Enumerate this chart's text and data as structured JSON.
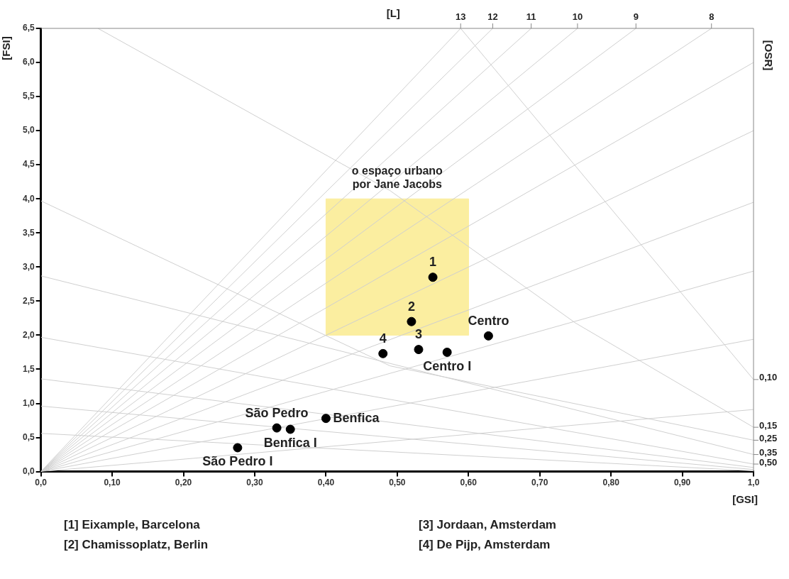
{
  "chart_data": {
    "type": "scatter",
    "xlabel": "[GSI]",
    "ylabel": "[FSI]",
    "x2label": "[L]",
    "y2label": "[OSR]",
    "xlim": [
      0,
      1
    ],
    "ylim": [
      0,
      6.5
    ],
    "xticks": [
      {
        "value": 0,
        "label": "0,0"
      },
      {
        "value": 0.1,
        "label": "0,10"
      },
      {
        "value": 0.2,
        "label": "0,20"
      },
      {
        "value": 0.3,
        "label": "0,30"
      },
      {
        "value": 0.4,
        "label": "0,40"
      },
      {
        "value": 0.5,
        "label": "0,50"
      },
      {
        "value": 0.6,
        "label": "0,60"
      },
      {
        "value": 0.7,
        "label": "0,70"
      },
      {
        "value": 0.8,
        "label": "0,80"
      },
      {
        "value": 0.9,
        "label": "0,90"
      },
      {
        "value": 1,
        "label": "1,0"
      }
    ],
    "yticks": [
      {
        "value": 0,
        "label": "0,0"
      },
      {
        "value": 0.5,
        "label": "0,5"
      },
      {
        "value": 1,
        "label": "1,0"
      },
      {
        "value": 1.5,
        "label": "1,5"
      },
      {
        "value": 2,
        "label": "2,0"
      },
      {
        "value": 2.5,
        "label": "2,5"
      },
      {
        "value": 3,
        "label": "3,0"
      },
      {
        "value": 3.5,
        "label": "3,5"
      },
      {
        "value": 4,
        "label": "4,0"
      },
      {
        "value": 4.5,
        "label": "4,5"
      },
      {
        "value": 5,
        "label": "5,0"
      },
      {
        "value": 5.5,
        "label": "5,5"
      },
      {
        "value": 6,
        "label": "6,0"
      },
      {
        "value": 6.5,
        "label": "6,5"
      }
    ],
    "series": [
      {
        "type": "area",
        "x": [
          0.4,
          0.4,
          0.6,
          0.6,
          0.4
        ],
        "values": [
          2,
          4,
          4,
          2,
          2
        ],
        "color": "#fbeea0"
      },
      {
        "type": "line",
        "x": [
          0,
          0.589
        ],
        "values": [
          0,
          6.5
        ],
        "color": "#cfcfcf"
      },
      {
        "type": "line",
        "x": [
          0,
          0.634
        ],
        "values": [
          0,
          6.5
        ],
        "color": "#cfcfcf"
      },
      {
        "type": "line",
        "x": [
          0,
          0.688
        ],
        "values": [
          0,
          6.5
        ],
        "color": "#cfcfcf"
      },
      {
        "type": "line",
        "x": [
          0,
          0.753
        ],
        "values": [
          0,
          6.5
        ],
        "color": "#cfcfcf"
      },
      {
        "type": "line",
        "x": [
          0,
          0.835
        ],
        "values": [
          0,
          6.5
        ],
        "color": "#cfcfcf"
      },
      {
        "type": "line",
        "x": [
          0,
          0.941
        ],
        "values": [
          0,
          6.5
        ],
        "color": "#cfcfcf"
      },
      {
        "type": "line",
        "x": [
          0,
          1
        ],
        "values": [
          0,
          6
        ],
        "color": "#cfcfcf"
      },
      {
        "type": "line",
        "x": [
          0,
          1
        ],
        "values": [
          0,
          5
        ],
        "color": "#cfcfcf"
      },
      {
        "type": "line",
        "x": [
          0,
          1
        ],
        "values": [
          0,
          3.95
        ],
        "color": "#cfcfcf"
      },
      {
        "type": "line",
        "x": [
          0,
          1
        ],
        "values": [
          0,
          2.94
        ],
        "color": "#cfcfcf"
      },
      {
        "type": "line",
        "x": [
          0,
          1
        ],
        "values": [
          0,
          1.94
        ],
        "color": "#cfcfcf"
      },
      {
        "type": "line",
        "x": [
          0,
          1
        ],
        "values": [
          0,
          0.91
        ],
        "color": "#cfcfcf"
      },
      {
        "type": "line",
        "x": [
          0.08,
          0.49,
          0.75,
          1
        ],
        "values": [
          6.5,
          4.12,
          2.18,
          0.65
        ],
        "color": "#cfcfcf"
      },
      {
        "type": "line",
        "x": [
          0.589,
          1
        ],
        "values": [
          6.5,
          1.35
        ],
        "color": "#cfcfcf"
      },
      {
        "type": "line",
        "x": [
          0,
          0.49,
          1
        ],
        "values": [
          3.97,
          1.55,
          0.46
        ],
        "color": "#cfcfcf"
      },
      {
        "type": "line",
        "x": [
          0,
          1
        ],
        "values": [
          2.87,
          0.25
        ],
        "color": "#cfcfcf"
      },
      {
        "type": "line",
        "x": [
          0,
          1
        ],
        "values": [
          1.97,
          0.11
        ],
        "color": "#cfcfcf"
      },
      {
        "type": "line",
        "x": [
          0,
          1
        ],
        "values": [
          1.36,
          0.06
        ],
        "color": "#cfcfcf"
      },
      {
        "type": "line",
        "x": [
          0,
          1
        ],
        "values": [
          0.96,
          0.03
        ],
        "color": "#cfcfcf"
      },
      {
        "type": "line",
        "x": [
          0,
          1
        ],
        "values": [
          0.56,
          0.01
        ],
        "color": "#cfcfcf"
      },
      {
        "marker": "circle",
        "x": [
          0.55,
          0.52,
          0.53,
          0.48,
          0.628,
          0.57,
          0.331,
          0.35,
          0.4,
          0.276
        ],
        "values": [
          2.85,
          2.2,
          1.79,
          1.73,
          1.99,
          1.75,
          0.64,
          0.62,
          0.78,
          0.35
        ],
        "color": "#000000"
      }
    ],
    "annotations": [
      {
        "text": "13",
        "x": 0.589,
        "y": 6.5
      },
      {
        "text": "12",
        "x": 0.634,
        "y": 6.5
      },
      {
        "text": "11",
        "x": 0.688,
        "y": 6.5
      },
      {
        "text": "10",
        "x": 0.753,
        "y": 6.5
      },
      {
        "text": "9",
        "x": 0.835,
        "y": 6.5
      },
      {
        "text": "8",
        "x": 0.941,
        "y": 6.5
      },
      {
        "text": "0,10",
        "x": 1,
        "y": 1.35
      },
      {
        "text": "0,15",
        "x": 1,
        "y": 0.65
      },
      {
        "text": "0,25",
        "x": 1,
        "y": 0.46
      },
      {
        "text": "0,35",
        "x": 1,
        "y": 0.25
      },
      {
        "text": "0,50",
        "x": 1,
        "y": 0.11
      },
      {
        "text": "o espaço urbano\npor Jane Jacobs",
        "x": 0.5,
        "y": 4
      },
      {
        "text": "1",
        "x": 0.55,
        "y": 2.85
      },
      {
        "text": "2",
        "x": 0.52,
        "y": 2.2
      },
      {
        "text": "3",
        "x": 0.53,
        "y": 1.79
      },
      {
        "text": "4",
        "x": 0.48,
        "y": 1.73
      },
      {
        "text": "Centro",
        "x": 0.628,
        "y": 1.99
      },
      {
        "text": "Centro I",
        "x": 0.57,
        "y": 1.75
      },
      {
        "text": "São Pedro",
        "x": 0.331,
        "y": 0.64
      },
      {
        "text": "Benfica I",
        "x": 0.35,
        "y": 0.62
      },
      {
        "text": "Benfica",
        "x": 0.4,
        "y": 0.78
      },
      {
        "text": "São Pedro I",
        "x": 0.276,
        "y": 0.35
      },
      "[1] Eixample, Barcelona",
      "[2] Chamissoplatz, Berlin",
      "[3] Jordaan, Amsterdam",
      "[4] De Pijp, Amsterdam"
    ]
  }
}
